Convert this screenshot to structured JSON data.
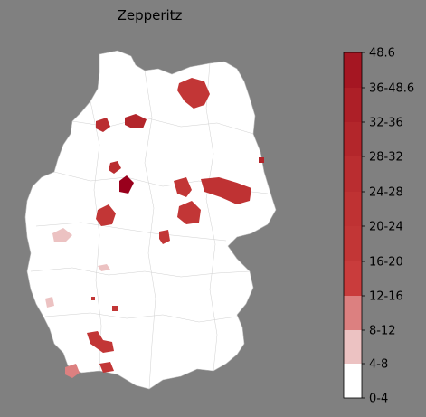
{
  "title": "Zepperitz",
  "map": {
    "land_color": "#ffffff",
    "border_color": "#bdbdbd",
    "background": "#808080"
  },
  "legend": {
    "bins": [
      {
        "label": "0-4",
        "color": "#ffffff"
      },
      {
        "label": "4-8",
        "color": "#ecc2c2"
      },
      {
        "label": "8-12",
        "color": "#dc8080"
      },
      {
        "label": "12-16",
        "color": "#c93c3c"
      },
      {
        "label": "16-20",
        "color": "#c23636"
      },
      {
        "label": "20-24",
        "color": "#bf3233"
      },
      {
        "label": "24-28",
        "color": "#ba2d30"
      },
      {
        "label": "28-32",
        "color": "#b3262b"
      },
      {
        "label": "32-36",
        "color": "#ad1f27"
      },
      {
        "label": "36-48.6",
        "color": "#a51622"
      },
      {
        "label": "48.6",
        "color": "#99001c"
      }
    ],
    "tick_labels": [
      "0-4",
      "4-8",
      "8-12",
      "12-16",
      "16-20",
      "20-24",
      "24-28",
      "28-32",
      "32-36",
      "36-48.6",
      "48.6"
    ]
  },
  "highlighted_regions": [
    {
      "name": "northeast-coast",
      "color": "#c23636"
    },
    {
      "name": "north-1",
      "color": "#b3262b"
    },
    {
      "name": "north-2",
      "color": "#ba2d30"
    },
    {
      "name": "central-west",
      "color": "#99001c"
    },
    {
      "name": "east-1",
      "color": "#c23636"
    },
    {
      "name": "east-2",
      "color": "#bf3233"
    },
    {
      "name": "west-1",
      "color": "#c23636"
    },
    {
      "name": "west-pink",
      "color": "#ecc2c2"
    },
    {
      "name": "south-west",
      "color": "#c23636"
    },
    {
      "name": "south-pink",
      "color": "#dc8080"
    }
  ]
}
